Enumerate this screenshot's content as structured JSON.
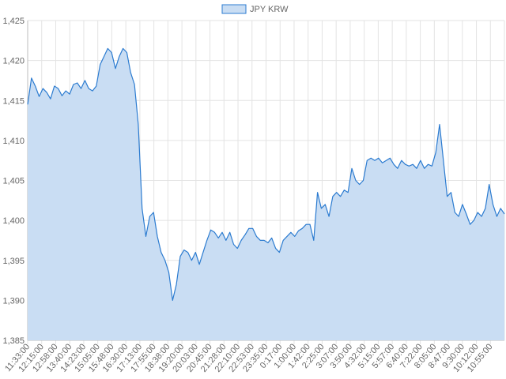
{
  "chart_data": {
    "type": "area",
    "title": "",
    "xlabel": "",
    "ylabel": "",
    "legend": {
      "position": "top",
      "entries": [
        "JPY KRW"
      ]
    },
    "grid": true,
    "ylim": [
      1385,
      1425
    ],
    "y_ticks": [
      "1,385",
      "1,390",
      "1,395",
      "1,400",
      "1,405",
      "1,410",
      "1,415",
      "1,420",
      "1,425"
    ],
    "y_tick_values": [
      1385,
      1390,
      1395,
      1400,
      1405,
      1410,
      1415,
      1420,
      1425
    ],
    "x_ticks": [
      "11:33:00",
      "12:15:00",
      "12:58:00",
      "13:40:00",
      "14:23:00",
      "15:05:00",
      "15:48:00",
      "16:30:00",
      "17:13:00",
      "17:55:00",
      "18:38:00",
      "19:20:00",
      "20:03:00",
      "20:45:00",
      "21:28:00",
      "22:10:00",
      "22:53:00",
      "23:35:00",
      "0:17:00",
      "1:00:00",
      "1:42:00",
      "2:25:00",
      "3:07:00",
      "3:50:00",
      "4:32:00",
      "5:15:00",
      "5:57:00",
      "6:40:00",
      "7:22:00",
      "8:05:00",
      "8:47:00",
      "9:30:00",
      "10:12:00",
      "10:55:00"
    ],
    "colors": {
      "line": "#2b7bd0",
      "fill": "#c9ddf3",
      "grid": "#e3e3e3",
      "axis": "#bdbdbd"
    },
    "series": [
      {
        "name": "JPY KRW",
        "x_range": [
          "11:33:00",
          "10:55:00"
        ],
        "values": [
          1414.5,
          1417.8,
          1416.8,
          1415.5,
          1416.5,
          1416.0,
          1415.2,
          1416.8,
          1416.5,
          1415.6,
          1416.2,
          1415.8,
          1417.0,
          1417.2,
          1416.5,
          1417.5,
          1416.5,
          1416.2,
          1416.8,
          1419.5,
          1420.5,
          1421.5,
          1421.0,
          1419.0,
          1420.5,
          1421.5,
          1421.0,
          1418.5,
          1417.0,
          1412.0,
          1401.5,
          1398.0,
          1400.5,
          1401.0,
          1398.0,
          1396.0,
          1395.0,
          1393.5,
          1390.0,
          1392.0,
          1395.5,
          1396.3,
          1396.0,
          1395.0,
          1396.0,
          1394.5,
          1396.0,
          1397.5,
          1398.8,
          1398.5,
          1397.8,
          1398.5,
          1397.5,
          1398.5,
          1397.0,
          1396.5,
          1397.5,
          1398.2,
          1399.0,
          1399.0,
          1398.0,
          1397.5,
          1397.5,
          1397.2,
          1397.8,
          1396.5,
          1396.0,
          1397.5,
          1398.0,
          1398.5,
          1398.0,
          1398.7,
          1399.0,
          1399.5,
          1399.5,
          1397.5,
          1403.5,
          1401.5,
          1402.0,
          1400.5,
          1403.0,
          1403.5,
          1403.0,
          1403.8,
          1403.5,
          1406.5,
          1405.0,
          1404.5,
          1405.0,
          1407.5,
          1407.8,
          1407.5,
          1407.8,
          1407.2,
          1407.5,
          1407.8,
          1407.0,
          1406.5,
          1407.5,
          1407.0,
          1406.8,
          1407.0,
          1406.5,
          1407.5,
          1406.5,
          1407.0,
          1406.8,
          1408.5,
          1412.0,
          1407.5,
          1403.0,
          1403.5,
          1401.0,
          1400.5,
          1402.0,
          1400.8,
          1399.5,
          1400.0,
          1401.0,
          1400.5,
          1401.5,
          1404.5,
          1402.0,
          1400.5,
          1401.5,
          1400.8
        ]
      }
    ]
  }
}
